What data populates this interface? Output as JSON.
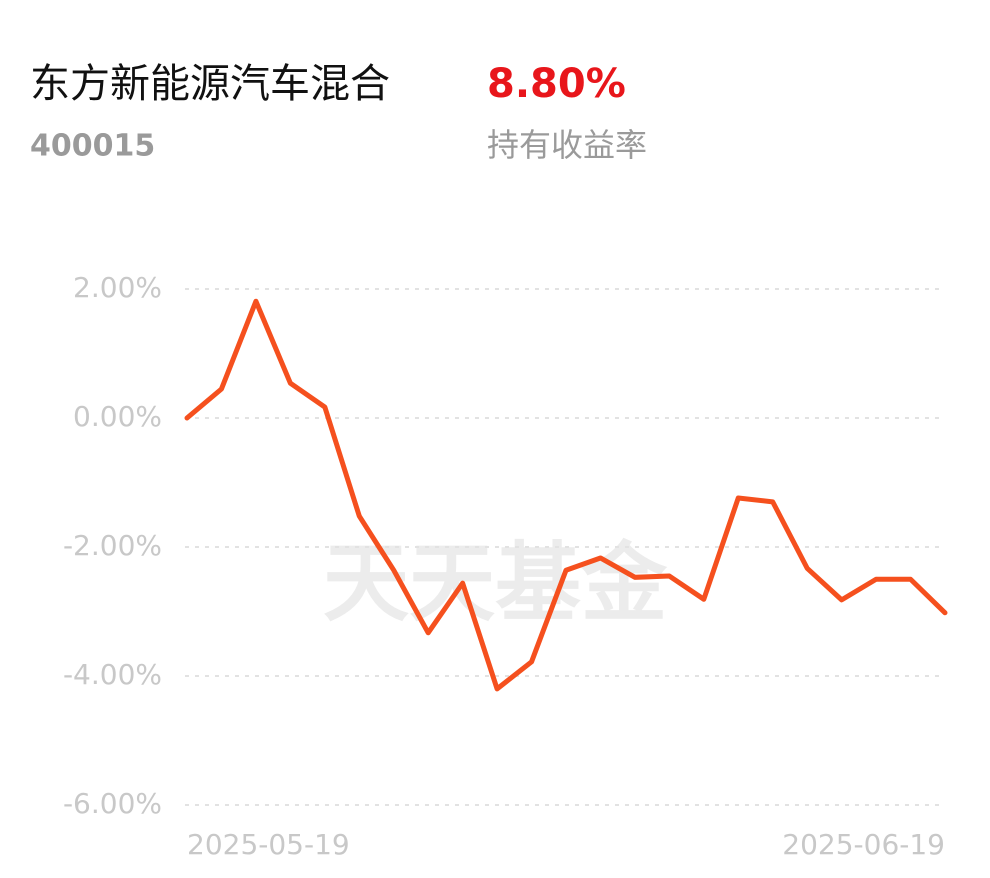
{
  "chart_data": {
    "type": "line",
    "title": "东方新能源汽车混合",
    "subtitle": "400015",
    "return_value": "8.80%",
    "return_label": "持有收益率",
    "watermark": "天天基金",
    "categories": [
      "2025-05-19",
      null,
      null,
      null,
      null,
      null,
      null,
      null,
      null,
      null,
      null,
      null,
      null,
      null,
      null,
      null,
      null,
      null,
      null,
      null,
      null,
      null,
      "2025-06-19"
    ],
    "series": [
      {
        "color": "#f5501e",
        "values": [
          0.0,
          0.45,
          1.81,
          0.54,
          0.17,
          -1.52,
          -2.36,
          -3.33,
          -2.56,
          -4.2,
          -3.78,
          -2.36,
          -2.17,
          -2.47,
          -2.45,
          -2.81,
          -1.24,
          -1.3,
          -2.33,
          -2.82,
          -2.5,
          -2.5,
          -3.02
        ]
      }
    ],
    "ylim": [
      -6,
      2
    ],
    "yticks": [
      {
        "value": 2,
        "label": "2.00%"
      },
      {
        "value": 0,
        "label": "0.00%"
      },
      {
        "value": -2,
        "label": "-2.00%"
      },
      {
        "value": -4,
        "label": "-4.00%"
      },
      {
        "value": -6,
        "label": "-6.00%"
      }
    ],
    "grid": true
  }
}
